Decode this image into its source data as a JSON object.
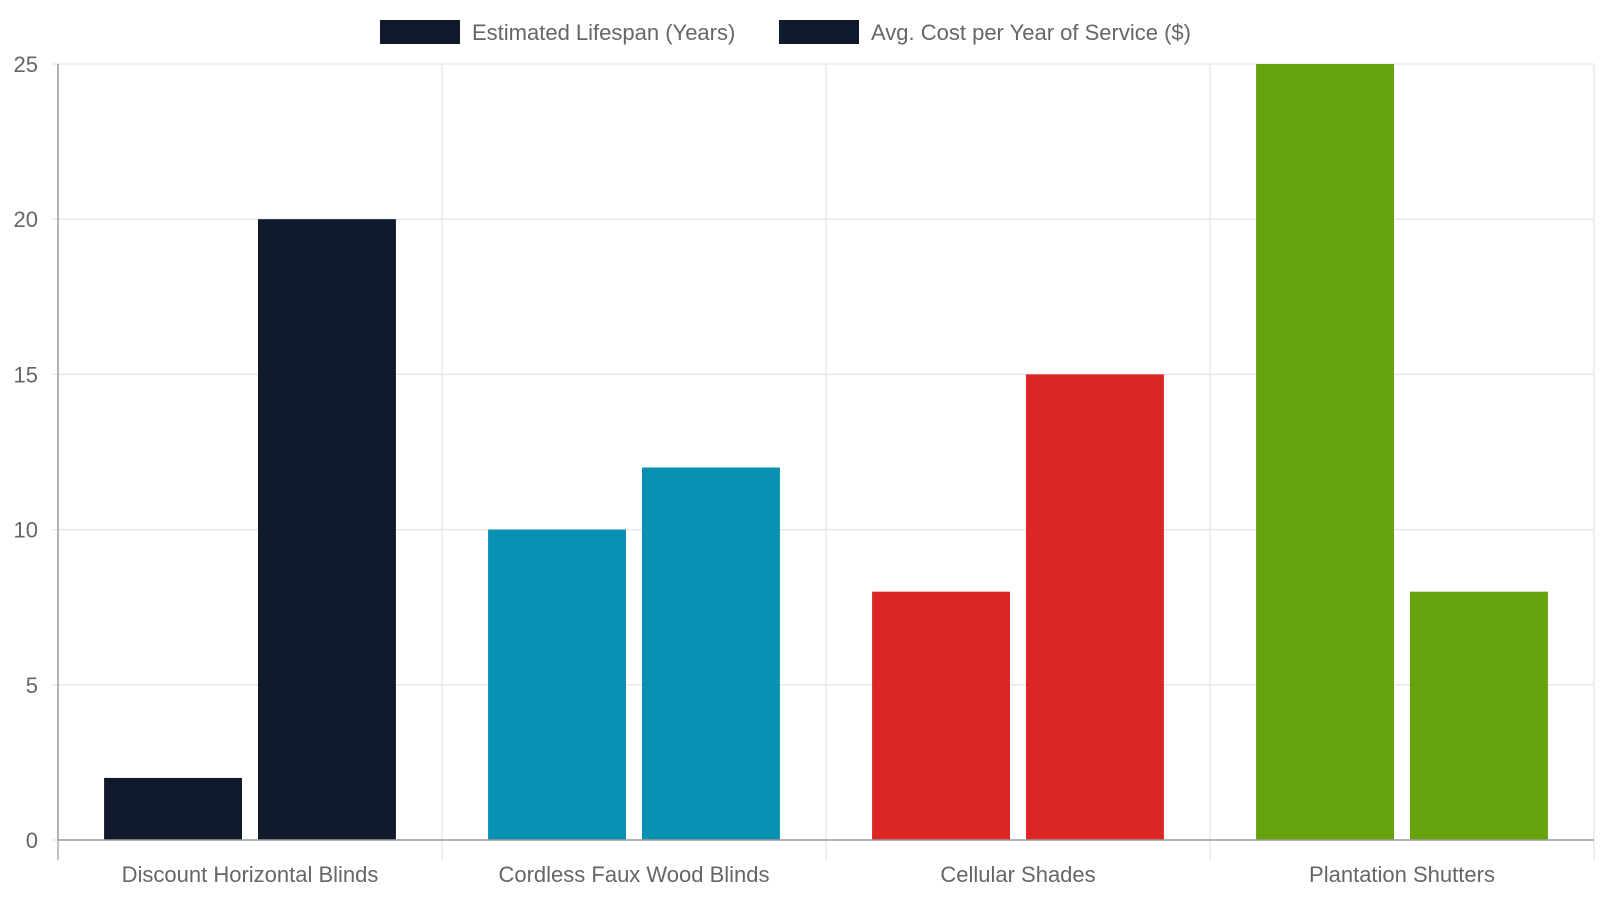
{
  "chart_data": {
    "type": "bar",
    "title": "",
    "xlabel": "",
    "ylabel": "",
    "categories": [
      "Discount Horizontal Blinds",
      "Cordless Faux Wood Blinds",
      "Cellular Shades",
      "Plantation Shutters"
    ],
    "series": [
      {
        "name": "Estimated Lifespan (Years)",
        "values": [
          2,
          10,
          8,
          25
        ]
      },
      {
        "name": "Avg. Cost per Year of Service ($)",
        "values": [
          20,
          12,
          15,
          8
        ]
      }
    ],
    "category_colors": [
      "#111a2c",
      "#0891b2",
      "#dc2626",
      "#65a30d"
    ],
    "legend_swatch_color": "#111a2c",
    "ylim": [
      0,
      25
    ],
    "yticks": [
      0,
      5,
      10,
      15,
      20,
      25
    ],
    "grid": true,
    "legend_position": "top-center"
  }
}
